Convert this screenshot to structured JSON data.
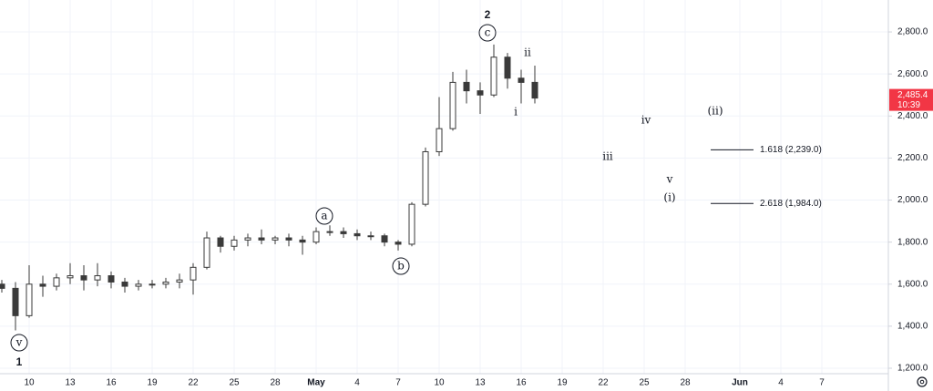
{
  "chart_data": {
    "type": "candlestick",
    "categories": [
      null,
      null,
      "10",
      null,
      null,
      "13",
      null,
      null,
      "16",
      null,
      null,
      "19",
      null,
      null,
      "22",
      null,
      null,
      "25",
      null,
      null,
      "28",
      null,
      null,
      "May",
      null,
      null,
      "4",
      null,
      null,
      "7",
      null,
      null,
      "10",
      null,
      null,
      "13",
      null,
      null,
      "16",
      null,
      null,
      "19",
      null,
      null,
      "22",
      null,
      null,
      "25",
      null,
      null,
      "28",
      null,
      null,
      null,
      "Jun",
      null,
      null,
      "4",
      null,
      null,
      "7",
      null,
      null,
      null
    ],
    "open": [
      1600,
      1580,
      1450,
      1600,
      1590,
      1630,
      1640,
      1620,
      1640,
      1610,
      1590,
      1600,
      1600,
      1610,
      1620,
      1680,
      1820,
      1780,
      1810,
      1820,
      1810,
      1820,
      1810,
      1800,
      1850,
      1850,
      1840,
      1830,
      1830,
      1800,
      1790,
      1980,
      2230,
      2340,
      2560,
      2520,
      2500,
      2680,
      2580,
      2560,
      null,
      null,
      null,
      null,
      null,
      null,
      null,
      null,
      null,
      null,
      null,
      null,
      null,
      null,
      null,
      null,
      null,
      null,
      null,
      null,
      null,
      null,
      null,
      null
    ],
    "high": [
      1620,
      1610,
      1690,
      1640,
      1650,
      1700,
      1690,
      1700,
      1660,
      1630,
      1620,
      1620,
      1630,
      1650,
      1700,
      1850,
      1830,
      1830,
      1840,
      1860,
      1830,
      1840,
      1830,
      1870,
      1880,
      1870,
      1860,
      1850,
      1840,
      1810,
      1990,
      2250,
      2490,
      2610,
      2620,
      2560,
      2740,
      2700,
      2620,
      2640,
      null,
      null,
      null,
      null,
      null,
      null,
      null,
      null,
      null,
      null,
      null,
      null,
      null,
      null,
      null,
      null,
      null,
      null,
      null,
      null,
      null,
      null,
      null,
      null
    ],
    "low": [
      1560,
      1380,
      1440,
      1540,
      1570,
      1600,
      1570,
      1590,
      1580,
      1560,
      1570,
      1580,
      1580,
      1580,
      1550,
      1670,
      1750,
      1760,
      1780,
      1790,
      1790,
      1780,
      1740,
      1790,
      1830,
      1820,
      1810,
      1810,
      1780,
      1760,
      1780,
      1970,
      2210,
      2330,
      2460,
      2410,
      2490,
      2530,
      2460,
      2460,
      null,
      null,
      null,
      null,
      null,
      null,
      null,
      null,
      null,
      null,
      null,
      null,
      null,
      null,
      null,
      null,
      null,
      null,
      null,
      null,
      null,
      null,
      null,
      null
    ],
    "close": [
      1580,
      1450,
      1600,
      1590,
      1630,
      1640,
      1620,
      1640,
      1610,
      1590,
      1600,
      1600,
      1610,
      1620,
      1680,
      1820,
      1780,
      1810,
      1820,
      1810,
      1820,
      1810,
      1800,
      1850,
      1850,
      1840,
      1830,
      1830,
      1800,
      1790,
      1980,
      2230,
      2340,
      2560,
      2520,
      2500,
      2680,
      2580,
      2560,
      2485.4,
      null,
      null,
      null,
      null,
      null,
      null,
      null,
      null,
      null,
      null,
      null,
      null,
      null,
      null,
      null,
      null,
      null,
      null,
      null,
      null,
      null,
      null,
      null,
      null
    ],
    "candle_color": "#3a3a3a",
    "ylim": [
      1174,
      2952
    ],
    "yticks": [
      {
        "value": 1200,
        "label": "1,200.0"
      },
      {
        "value": 1400,
        "label": "1,400.0"
      },
      {
        "value": 1600,
        "label": "1,600.0"
      },
      {
        "value": 1800,
        "label": "1,800.0"
      },
      {
        "value": 2000,
        "label": "2,000.0"
      },
      {
        "value": 2200,
        "label": "2,200.0"
      },
      {
        "value": 2400,
        "label": "2,400.0"
      },
      {
        "value": 2600,
        "label": "2,600.0"
      },
      {
        "value": 2800,
        "label": "2,800.0"
      }
    ],
    "grid": true,
    "last_price": {
      "value": 2485.4,
      "label": "2,485.4",
      "color": "#f23645"
    },
    "countdown": "10:39",
    "levels": [
      {
        "value": 2239,
        "label": "1.618 (2,239.0)"
      },
      {
        "value": 1984,
        "label": "2.618 (1,984.0)"
      }
    ],
    "annotations": [
      "2",
      "c",
      "ii",
      "i",
      "a",
      "b",
      "v",
      "1",
      "iii",
      "iv",
      "(ii)",
      "v",
      "(i)"
    ]
  }
}
